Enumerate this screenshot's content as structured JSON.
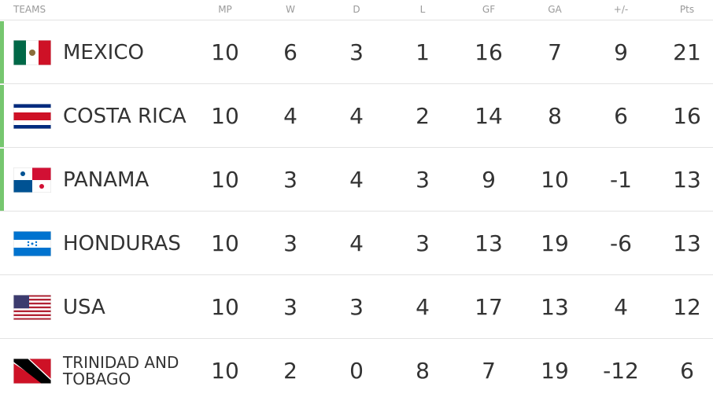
{
  "table": {
    "headers": [
      "TEAMS",
      "MP",
      "W",
      "D",
      "L",
      "GF",
      "GA",
      "+/-",
      "Pts"
    ],
    "rows": [
      [
        "MEXICO",
        10,
        6,
        3,
        1,
        16,
        7,
        9,
        21
      ],
      [
        "COSTA RICA",
        10,
        4,
        4,
        2,
        14,
        8,
        6,
        16
      ],
      [
        "PANAMA",
        10,
        3,
        4,
        3,
        9,
        10,
        -1,
        13
      ],
      [
        "HONDURAS",
        10,
        3,
        4,
        3,
        13,
        19,
        -6,
        13
      ],
      [
        "USA",
        10,
        3,
        3,
        4,
        17,
        13,
        4,
        12
      ],
      [
        "TRINIDAD AND TOBAGO",
        10,
        2,
        0,
        8,
        7,
        19,
        -12,
        6
      ]
    ]
  }
}
